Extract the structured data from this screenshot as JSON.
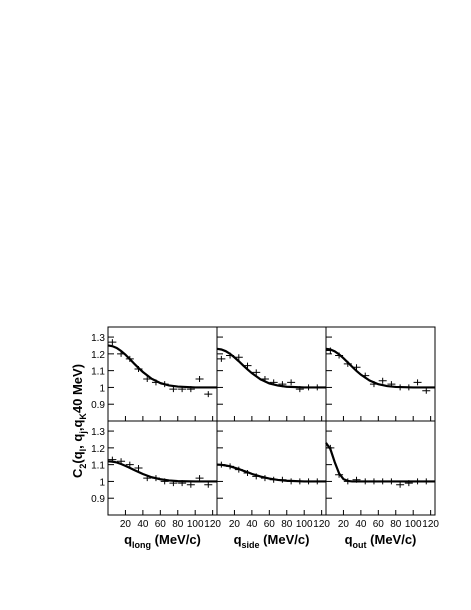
{
  "chart_data": [
    {
      "type": "scatter",
      "ylabel": [
        "C",
        "2",
        "(q",
        "l",
        ", q",
        "j",
        ",q",
        "K",
        "40 MeV)"
      ],
      "xlim": [
        0,
        125
      ],
      "ylim": [
        0.8,
        1.36
      ],
      "xticks": [
        20,
        40,
        60,
        80,
        100,
        120
      ],
      "yticks": [
        0.9,
        1,
        1.1,
        1.2,
        1.3
      ],
      "xtick_labels": false,
      "ytick_labels": true,
      "color": "#000000",
      "points": {
        "x": [
          5,
          15,
          25,
          35,
          45,
          55,
          65,
          75,
          85,
          95,
          105,
          115
        ],
        "values": [
          1.27,
          1.2,
          1.17,
          1.11,
          1.05,
          1.03,
          1.02,
          0.99,
          0.99,
          0.99,
          1.05,
          0.96
        ]
      },
      "fit": {
        "x": [
          0,
          5,
          10,
          15,
          20,
          25,
          30,
          35,
          40,
          50,
          60,
          70,
          80,
          100,
          125
        ],
        "values": [
          1.25,
          1.246,
          1.235,
          1.217,
          1.195,
          1.169,
          1.142,
          1.116,
          1.092,
          1.052,
          1.026,
          1.012,
          1.005,
          1.0,
          1.0
        ]
      }
    },
    {
      "type": "scatter",
      "xlim": [
        0,
        125
      ],
      "ylim": [
        0.8,
        1.36
      ],
      "xticks": [
        20,
        40,
        60,
        80,
        100,
        120
      ],
      "yticks": [
        0.9,
        1,
        1.1,
        1.2,
        1.3
      ],
      "xtick_labels": false,
      "ytick_labels": false,
      "color": "#000000",
      "points": {
        "x": [
          5,
          15,
          25,
          35,
          45,
          55,
          65,
          75,
          85,
          95,
          105,
          115
        ],
        "values": [
          1.17,
          1.19,
          1.18,
          1.13,
          1.09,
          1.05,
          1.03,
          1.02,
          1.03,
          0.99,
          1.0,
          1.0
        ]
      },
      "fit": {
        "x": [
          0,
          5,
          10,
          15,
          20,
          25,
          30,
          35,
          40,
          50,
          60,
          70,
          80,
          100,
          125
        ],
        "values": [
          1.23,
          1.226,
          1.216,
          1.2,
          1.179,
          1.156,
          1.131,
          1.107,
          1.085,
          1.048,
          1.024,
          1.011,
          1.004,
          1.0,
          1.0
        ]
      }
    },
    {
      "type": "scatter",
      "xlim": [
        0,
        125
      ],
      "ylim": [
        0.8,
        1.36
      ],
      "xticks": [
        20,
        40,
        60,
        80,
        100,
        120
      ],
      "yticks": [
        0.9,
        1,
        1.1,
        1.2,
        1.3
      ],
      "xtick_labels": false,
      "ytick_labels": false,
      "color": "#000000",
      "points": {
        "x": [
          5,
          15,
          25,
          35,
          45,
          55,
          65,
          75,
          85,
          95,
          105,
          115
        ],
        "values": [
          1.22,
          1.19,
          1.14,
          1.12,
          1.07,
          1.02,
          1.04,
          1.02,
          1.0,
          1.0,
          1.03,
          0.98
        ]
      },
      "fit": {
        "x": [
          0,
          5,
          10,
          15,
          20,
          25,
          30,
          35,
          40,
          50,
          60,
          70,
          80,
          100,
          125
        ],
        "values": [
          1.23,
          1.226,
          1.215,
          1.197,
          1.174,
          1.149,
          1.123,
          1.098,
          1.076,
          1.041,
          1.019,
          1.008,
          1.003,
          1.0,
          1.0
        ]
      }
    },
    {
      "type": "scatter",
      "xlabel": [
        "q",
        "long",
        " (MeV/c)"
      ],
      "xlim": [
        0,
        125
      ],
      "ylim": [
        0.8,
        1.36
      ],
      "xticks": [
        20,
        40,
        60,
        80,
        100,
        120
      ],
      "yticks": [
        0.9,
        1,
        1.1,
        1.2,
        1.3
      ],
      "xtick_labels": true,
      "ytick_labels": true,
      "color": "#000000",
      "points": {
        "x": [
          5,
          15,
          25,
          35,
          45,
          55,
          65,
          75,
          85,
          95,
          105,
          115
        ],
        "values": [
          1.13,
          1.12,
          1.1,
          1.08,
          1.02,
          1.02,
          1.0,
          0.99,
          0.99,
          0.98,
          1.02,
          0.98
        ]
      },
      "fit": {
        "x": [
          0,
          5,
          10,
          15,
          20,
          25,
          30,
          35,
          40,
          50,
          60,
          70,
          80,
          100,
          125
        ],
        "values": [
          1.12,
          1.118,
          1.113,
          1.104,
          1.093,
          1.081,
          1.068,
          1.056,
          1.044,
          1.025,
          1.013,
          1.006,
          1.002,
          1.0,
          1.0
        ]
      }
    },
    {
      "type": "scatter",
      "xlabel": [
        "q",
        "side",
        " (MeV/c)"
      ],
      "xlim": [
        0,
        125
      ],
      "ylim": [
        0.8,
        1.36
      ],
      "xticks": [
        20,
        40,
        60,
        80,
        100,
        120
      ],
      "yticks": [
        0.9,
        1,
        1.1,
        1.2,
        1.3
      ],
      "xtick_labels": true,
      "ytick_labels": false,
      "color": "#000000",
      "points": {
        "x": [
          5,
          15,
          25,
          35,
          45,
          55,
          65,
          75,
          85,
          95,
          105,
          115
        ],
        "values": [
          1.1,
          1.09,
          1.07,
          1.05,
          1.03,
          1.02,
          1.01,
          1.01,
          1.0,
          1.0,
          1.0,
          1.0
        ]
      },
      "fit": {
        "x": [
          0,
          5,
          10,
          15,
          20,
          25,
          30,
          35,
          40,
          50,
          60,
          70,
          80,
          100,
          125
        ],
        "values": [
          1.1,
          1.099,
          1.095,
          1.09,
          1.082,
          1.074,
          1.064,
          1.055,
          1.045,
          1.029,
          1.017,
          1.009,
          1.004,
          1.0,
          1.0
        ]
      }
    },
    {
      "type": "scatter",
      "xlabel": [
        "q",
        "out",
        " (MeV/c)"
      ],
      "xlim": [
        0,
        125
      ],
      "ylim": [
        0.8,
        1.36
      ],
      "xticks": [
        20,
        40,
        60,
        80,
        100,
        120
      ],
      "yticks": [
        0.9,
        1,
        1.1,
        1.2,
        1.3
      ],
      "xtick_labels": true,
      "ytick_labels": false,
      "color": "#000000",
      "points": {
        "x": [
          5,
          15,
          25,
          35,
          45,
          55,
          65,
          75,
          85,
          95,
          105,
          115
        ],
        "values": [
          1.2,
          1.04,
          1.0,
          1.01,
          1.0,
          1.0,
          1.0,
          1.0,
          0.98,
          0.99,
          1.0,
          1.0
        ]
      },
      "fit": {
        "x": [
          0,
          5,
          10,
          15,
          20,
          25,
          30,
          35,
          40,
          50,
          60,
          70,
          80,
          100,
          125
        ],
        "values": [
          1.23,
          1.193,
          1.115,
          1.048,
          1.014,
          1.003,
          1.0,
          1.0,
          1.0,
          1.0,
          1.0,
          1.0,
          1.0,
          1.0,
          1.0
        ]
      }
    }
  ]
}
